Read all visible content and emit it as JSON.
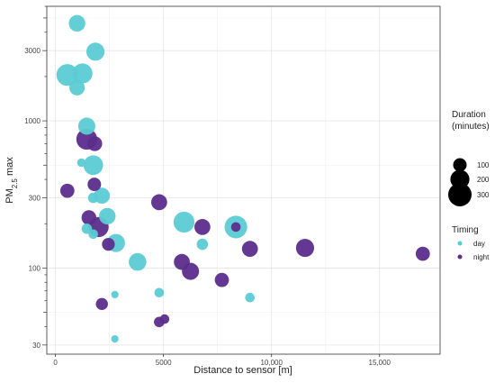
{
  "chart_data": {
    "type": "scatter",
    "xlabel": "Distance to sensor [m]",
    "ylabel_main": "PM",
    "ylabel_sub": "2.5",
    "ylabel_suffix": " max",
    "x_ticks": [
      0,
      5000,
      10000,
      15000
    ],
    "x_tick_labels": [
      "0",
      "5000",
      "10,000",
      "15,000"
    ],
    "xlim": [
      -400,
      17800
    ],
    "y_scale": "log",
    "ylim": [
      26,
      6000
    ],
    "y_ticks": [
      30,
      100,
      300,
      1000,
      3000
    ],
    "y_tick_labels": [
      "30",
      "100",
      "300",
      "1000",
      "3000"
    ],
    "grid": true,
    "legend_position": "right",
    "size_legend": {
      "title_line1": "Duration",
      "title_line2": "(minutes)",
      "values": [
        100,
        200,
        300
      ],
      "labels": [
        "100",
        "200",
        "300"
      ]
    },
    "color_legend": {
      "title": "Timing",
      "entries": [
        {
          "key": "day",
          "label": "day",
          "color": "#5BCBD3"
        },
        {
          "key": "night",
          "label": "night",
          "color": "#5C2D8C"
        }
      ]
    },
    "points": [
      {
        "x": 1000,
        "y": 4600,
        "duration": 150,
        "timing": "day"
      },
      {
        "x": 1850,
        "y": 2950,
        "duration": 180,
        "timing": "day"
      },
      {
        "x": 550,
        "y": 2050,
        "duration": 260,
        "timing": "day"
      },
      {
        "x": 1250,
        "y": 2100,
        "duration": 220,
        "timing": "day"
      },
      {
        "x": 1000,
        "y": 1680,
        "duration": 130,
        "timing": "day"
      },
      {
        "x": 1450,
        "y": 920,
        "duration": 160,
        "timing": "day"
      },
      {
        "x": 1450,
        "y": 750,
        "duration": 240,
        "timing": "night"
      },
      {
        "x": 1820,
        "y": 700,
        "duration": 120,
        "timing": "night"
      },
      {
        "x": 1200,
        "y": 520,
        "duration": 40,
        "timing": "day"
      },
      {
        "x": 1750,
        "y": 500,
        "duration": 210,
        "timing": "day"
      },
      {
        "x": 1800,
        "y": 370,
        "duration": 100,
        "timing": "night"
      },
      {
        "x": 550,
        "y": 335,
        "duration": 110,
        "timing": "night"
      },
      {
        "x": 2150,
        "y": 310,
        "duration": 140,
        "timing": "day"
      },
      {
        "x": 1750,
        "y": 300,
        "duration": 60,
        "timing": "day"
      },
      {
        "x": 4800,
        "y": 280,
        "duration": 140,
        "timing": "night"
      },
      {
        "x": 2400,
        "y": 225,
        "duration": 150,
        "timing": "day"
      },
      {
        "x": 1550,
        "y": 220,
        "duration": 120,
        "timing": "night"
      },
      {
        "x": 5950,
        "y": 205,
        "duration": 240,
        "timing": "day"
      },
      {
        "x": 8350,
        "y": 190,
        "duration": 280,
        "timing": "day"
      },
      {
        "x": 8350,
        "y": 190,
        "duration": 50,
        "timing": "night"
      },
      {
        "x": 6800,
        "y": 190,
        "duration": 140,
        "timing": "night"
      },
      {
        "x": 2000,
        "y": 190,
        "duration": 220,
        "timing": "night"
      },
      {
        "x": 1450,
        "y": 185,
        "duration": 60,
        "timing": "day"
      },
      {
        "x": 1750,
        "y": 170,
        "duration": 50,
        "timing": "day"
      },
      {
        "x": 2800,
        "y": 148,
        "duration": 180,
        "timing": "day"
      },
      {
        "x": 2450,
        "y": 145,
        "duration": 90,
        "timing": "night"
      },
      {
        "x": 6800,
        "y": 145,
        "duration": 70,
        "timing": "day"
      },
      {
        "x": 9000,
        "y": 135,
        "duration": 140,
        "timing": "night"
      },
      {
        "x": 11550,
        "y": 137,
        "duration": 180,
        "timing": "night"
      },
      {
        "x": 17000,
        "y": 125,
        "duration": 110,
        "timing": "night"
      },
      {
        "x": 3800,
        "y": 110,
        "duration": 170,
        "timing": "day"
      },
      {
        "x": 5850,
        "y": 110,
        "duration": 140,
        "timing": "night"
      },
      {
        "x": 6250,
        "y": 95,
        "duration": 160,
        "timing": "night"
      },
      {
        "x": 7700,
        "y": 83,
        "duration": 110,
        "timing": "night"
      },
      {
        "x": 4800,
        "y": 68,
        "duration": 50,
        "timing": "day"
      },
      {
        "x": 2750,
        "y": 66,
        "duration": 30,
        "timing": "day"
      },
      {
        "x": 9000,
        "y": 63,
        "duration": 50,
        "timing": "day"
      },
      {
        "x": 2150,
        "y": 57,
        "duration": 80,
        "timing": "night"
      },
      {
        "x": 5050,
        "y": 45,
        "duration": 50,
        "timing": "night"
      },
      {
        "x": 4800,
        "y": 43,
        "duration": 60,
        "timing": "night"
      },
      {
        "x": 2750,
        "y": 33,
        "duration": 30,
        "timing": "day"
      }
    ]
  }
}
